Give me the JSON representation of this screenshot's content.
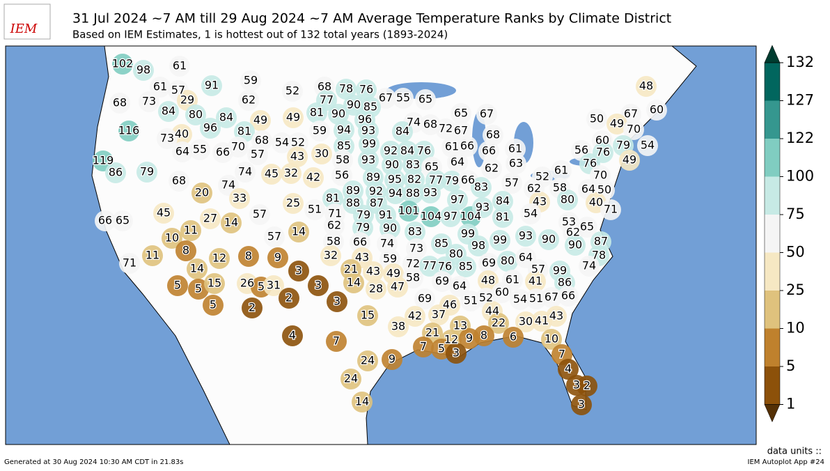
{
  "logo": "IEM",
  "title": "31 Jul 2024 ~7 AM till 29 Aug 2024 ~7 AM Average Temperature Ranks by Climate District",
  "subtitle": "Based on IEM Estimates, 1 is hottest out of 132 total years (1893-2024)",
  "colorbar": {
    "ticks": [
      1,
      5,
      10,
      25,
      50,
      75,
      100,
      122,
      127,
      132
    ],
    "colors": [
      "#8c510a",
      "#bf812d",
      "#dfc27d",
      "#f6e8c3",
      "#f5f5f5",
      "#c7eae5",
      "#80cdc1",
      "#35978f",
      "#01665e"
    ],
    "under_color": "#543005",
    "over_color": "#003c30"
  },
  "districts": [
    102,
    98,
    61,
    61,
    57,
    91,
    59,
    52,
    68,
    78,
    76,
    67,
    55,
    65,
    68,
    73,
    29,
    62,
    77,
    90,
    85,
    84,
    80,
    84,
    49,
    49,
    81,
    90,
    96,
    65,
    67,
    74,
    68,
    50,
    67,
    60,
    48,
    116,
    40,
    96,
    81,
    59,
    94,
    93,
    84,
    72,
    67,
    49,
    70,
    73,
    68,
    54,
    52,
    85,
    99,
    68,
    60,
    79,
    54,
    64,
    55,
    66,
    70,
    57,
    43,
    30,
    58,
    93,
    92,
    84,
    76,
    61,
    66,
    66,
    61,
    56,
    76,
    119,
    86,
    79,
    74,
    45,
    32,
    42,
    56,
    89,
    90,
    83,
    65,
    64,
    62,
    63,
    49,
    76,
    61,
    52,
    68,
    74,
    95,
    82,
    77,
    79,
    66,
    57,
    62,
    58,
    64,
    70,
    50,
    20,
    33,
    81,
    89,
    92,
    94,
    88,
    93,
    83,
    97,
    84,
    43,
    80,
    40,
    71,
    25,
    88,
    87,
    45,
    51,
    71,
    79,
    91,
    101,
    104,
    97,
    104,
    93,
    54,
    53,
    27,
    14,
    57,
    62,
    79,
    90,
    81,
    62,
    65,
    66,
    65,
    11,
    14,
    83,
    99,
    93,
    10,
    57,
    58,
    66,
    74,
    85,
    98,
    99,
    90,
    90,
    87,
    8,
    12,
    8,
    9,
    32,
    43,
    59,
    73,
    80,
    78,
    11,
    71,
    3,
    14,
    21,
    43,
    49,
    72,
    77,
    76,
    85,
    69,
    80,
    64,
    57,
    99,
    74,
    58,
    48,
    61,
    41,
    86,
    5,
    5,
    15,
    26,
    5,
    31,
    3,
    14,
    28,
    47,
    69,
    64,
    66,
    2,
    3,
    5,
    2,
    69,
    51,
    52,
    60,
    54,
    51,
    67,
    46,
    15,
    42,
    37,
    44,
    43,
    38,
    13,
    22,
    30,
    41,
    4,
    7,
    21,
    12,
    9,
    8,
    6,
    10,
    7,
    5,
    3,
    7,
    24,
    9,
    4,
    24,
    3,
    2,
    14,
    3
  ],
  "units_label": "data units ::",
  "footer_left": "Generated at 30 Aug 2024 10:30 AM CDT in 21.83s",
  "footer_right": "IEM Autoplot App #24"
}
